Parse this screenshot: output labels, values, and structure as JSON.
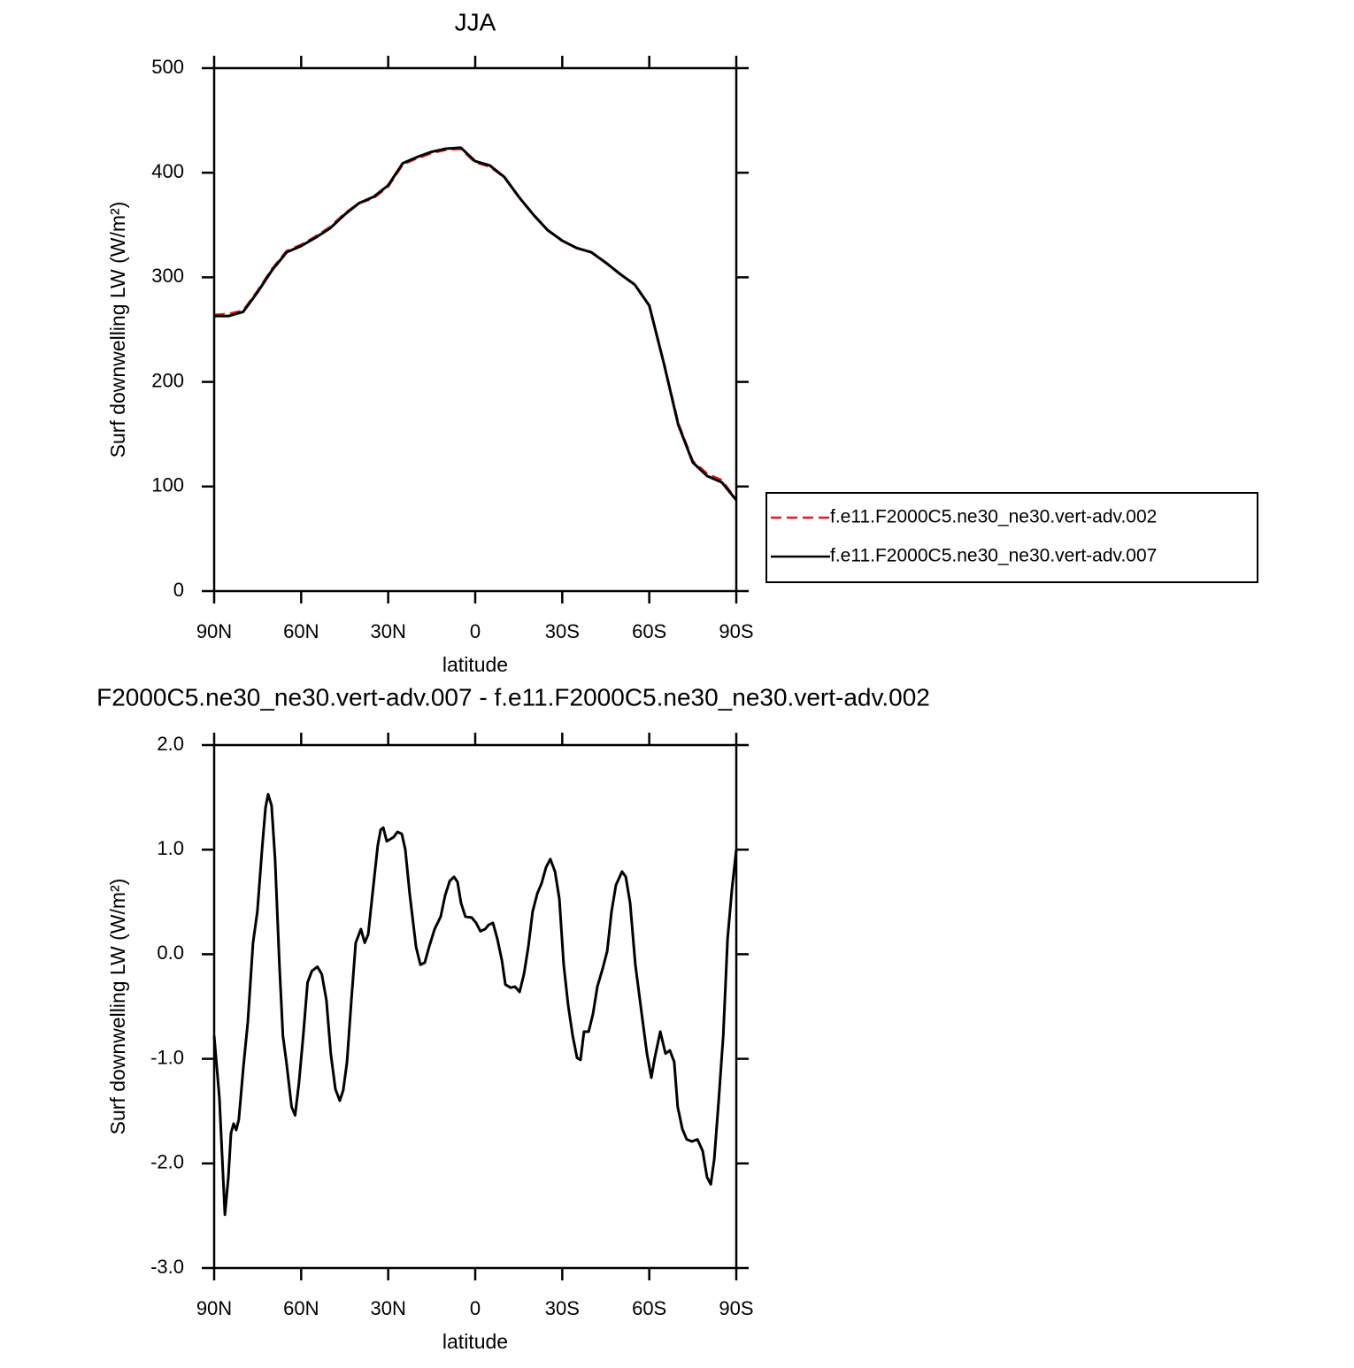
{
  "chart_data": [
    {
      "type": "line",
      "title": "JJA",
      "xlabel": "latitude",
      "ylabel": "Surf downwelling LW (W/m²)",
      "xlim": [
        90,
        -90
      ],
      "xticks": [
        {
          "value": 90,
          "label": "90N"
        },
        {
          "value": 60,
          "label": "60N"
        },
        {
          "value": 30,
          "label": "30N"
        },
        0,
        {
          "value": -30,
          "label": "30S"
        },
        {
          "value": -60,
          "label": "60S"
        },
        {
          "value": -90,
          "label": "90S"
        }
      ],
      "ylim": [
        0,
        500
      ],
      "yticks": [
        0,
        100,
        200,
        300,
        400,
        500
      ],
      "legend": "right",
      "x": [
        90,
        85,
        80,
        75,
        70,
        65,
        60,
        55,
        50,
        45,
        40,
        35,
        30,
        25,
        20,
        15,
        10,
        5,
        0,
        -5,
        -10,
        -15,
        -20,
        -25,
        -30,
        -35,
        -40,
        -45,
        -50,
        -55,
        -60,
        -65,
        -70,
        -75,
        -80,
        -85,
        -90
      ],
      "series": [
        {
          "name": "f.e11.F2000C5.ne30_ne30.vert-adv.002",
          "color": "#e41a1c",
          "line_style": "dashed",
          "values": [
            264,
            265,
            268,
            287,
            308,
            325,
            331,
            339,
            348,
            361,
            371,
            376,
            387,
            408,
            414,
            419,
            422,
            423,
            410,
            406,
            396,
            377,
            360,
            345,
            335,
            328,
            324,
            314,
            303,
            293,
            273,
            218,
            160,
            124,
            112,
            106,
            87
          ]
        },
        {
          "name": "f.e11.F2000C5.ne30_ne30.vert-adv.007",
          "color": "#000000",
          "line_style": "solid",
          "values": [
            263,
            263,
            267,
            286,
            307,
            324,
            330,
            338,
            347,
            360,
            371,
            377,
            388,
            409,
            415,
            420,
            423,
            424,
            411,
            407,
            396,
            377,
            360,
            345,
            335,
            328,
            324,
            314,
            303,
            293,
            273,
            218,
            159,
            123,
            110,
            104,
            87
          ]
        }
      ]
    },
    {
      "type": "line",
      "title": "F2000C5.ne30_ne30.vert-adv.007 - f.e11.F2000C5.ne30_ne30.vert-adv.002",
      "xlabel": "latitude",
      "ylabel": "Surf downwelling LW (W/m²)",
      "xlim": [
        90,
        -90
      ],
      "xticks": [
        {
          "value": 90,
          "label": "90N"
        },
        {
          "value": 60,
          "label": "60N"
        },
        {
          "value": 30,
          "label": "30N"
        },
        0,
        {
          "value": -30,
          "label": "30S"
        },
        {
          "value": -60,
          "label": "60S"
        },
        {
          "value": -90,
          "label": "90S"
        }
      ],
      "ylim": [
        -3,
        2
      ],
      "yticks": [
        {
          "value": -3,
          "label": "-3.0"
        },
        {
          "value": -2,
          "label": "-2.0"
        },
        {
          "value": -1,
          "label": "-1.0"
        },
        {
          "value": 0,
          "label": "0.0"
        },
        {
          "value": 1,
          "label": "1.0"
        },
        {
          "value": 2,
          "label": "2.0"
        }
      ],
      "color": "#000000",
      "x": [
        90,
        88.2,
        86.3,
        85.1,
        84.2,
        83.3,
        82.4,
        81.5,
        79.9,
        78.4,
        76.6,
        75.1,
        73.5,
        72.3,
        71.4,
        70.2,
        69.0,
        67.5,
        66.3,
        65.1,
        63.3,
        62.1,
        60.8,
        59.3,
        57.8,
        56.3,
        54.4,
        52.9,
        51.3,
        49.8,
        48.2,
        46.7,
        45.5,
        44.2,
        42.7,
        41.2,
        39.4,
        38.1,
        36.9,
        35.4,
        33.6,
        32.6,
        31.7,
        30.5,
        29.3,
        28.1,
        26.8,
        25.3,
        24.1,
        22.6,
        20.4,
        18.9,
        17.4,
        15.9,
        14.0,
        11.9,
        10.4,
        8.8,
        7.3,
        6.1,
        4.9,
        3.4,
        1.2,
        -0.3,
        -1.8,
        -3.4,
        -4.6,
        -6.1,
        -7.6,
        -9.2,
        -10.4,
        -12.2,
        -13.7,
        -15.3,
        -16.8,
        -18.3,
        -19.8,
        -21.4,
        -22.9,
        -24.4,
        -25.9,
        -27.5,
        -29.0,
        -30.5,
        -32.0,
        -33.6,
        -35.1,
        -36.3,
        -37.5,
        -39.1,
        -40.6,
        -42.1,
        -43.9,
        -45.5,
        -47.0,
        -48.5,
        -50.6,
        -51.9,
        -53.4,
        -55.2,
        -57.4,
        -59.2,
        -60.7,
        -61.9,
        -63.8,
        -65.6,
        -67.1,
        -68.6,
        -69.8,
        -71.4,
        -72.9,
        -74.7,
        -76.6,
        -78.4,
        -79.9,
        -81.2,
        -82.4,
        -83.9,
        -85.5,
        -87.0,
        -88.5,
        -90
      ],
      "values": [
        -0.78,
        -1.37,
        -2.49,
        -2.13,
        -1.71,
        -1.62,
        -1.68,
        -1.58,
        -1.07,
        -0.65,
        0.11,
        0.41,
        1.0,
        1.4,
        1.53,
        1.42,
        0.91,
        -0.1,
        -0.78,
        -1.03,
        -1.46,
        -1.54,
        -1.24,
        -0.78,
        -0.27,
        -0.16,
        -0.12,
        -0.19,
        -0.44,
        -0.95,
        -1.29,
        -1.4,
        -1.3,
        -1.03,
        -0.44,
        0.11,
        0.24,
        0.11,
        0.19,
        0.58,
        1.04,
        1.19,
        1.21,
        1.08,
        1.1,
        1.12,
        1.17,
        1.15,
        1.0,
        0.58,
        0.07,
        -0.1,
        -0.08,
        0.07,
        0.24,
        0.36,
        0.56,
        0.7,
        0.74,
        0.69,
        0.49,
        0.36,
        0.35,
        0.3,
        0.22,
        0.24,
        0.28,
        0.3,
        0.15,
        -0.06,
        -0.29,
        -0.32,
        -0.31,
        -0.36,
        -0.19,
        0.07,
        0.41,
        0.58,
        0.68,
        0.83,
        0.91,
        0.79,
        0.53,
        -0.1,
        -0.48,
        -0.78,
        -0.99,
        -1.01,
        -0.74,
        -0.74,
        -0.57,
        -0.31,
        -0.14,
        0.03,
        0.41,
        0.66,
        0.79,
        0.74,
        0.49,
        -0.1,
        -0.57,
        -0.95,
        -1.18,
        -0.99,
        -0.74,
        -0.95,
        -0.92,
        -1.03,
        -1.46,
        -1.67,
        -1.77,
        -1.79,
        -1.77,
        -1.88,
        -2.13,
        -2.2,
        -1.96,
        -1.41,
        -0.78,
        0.15,
        0.62,
        1.0
      ]
    }
  ]
}
